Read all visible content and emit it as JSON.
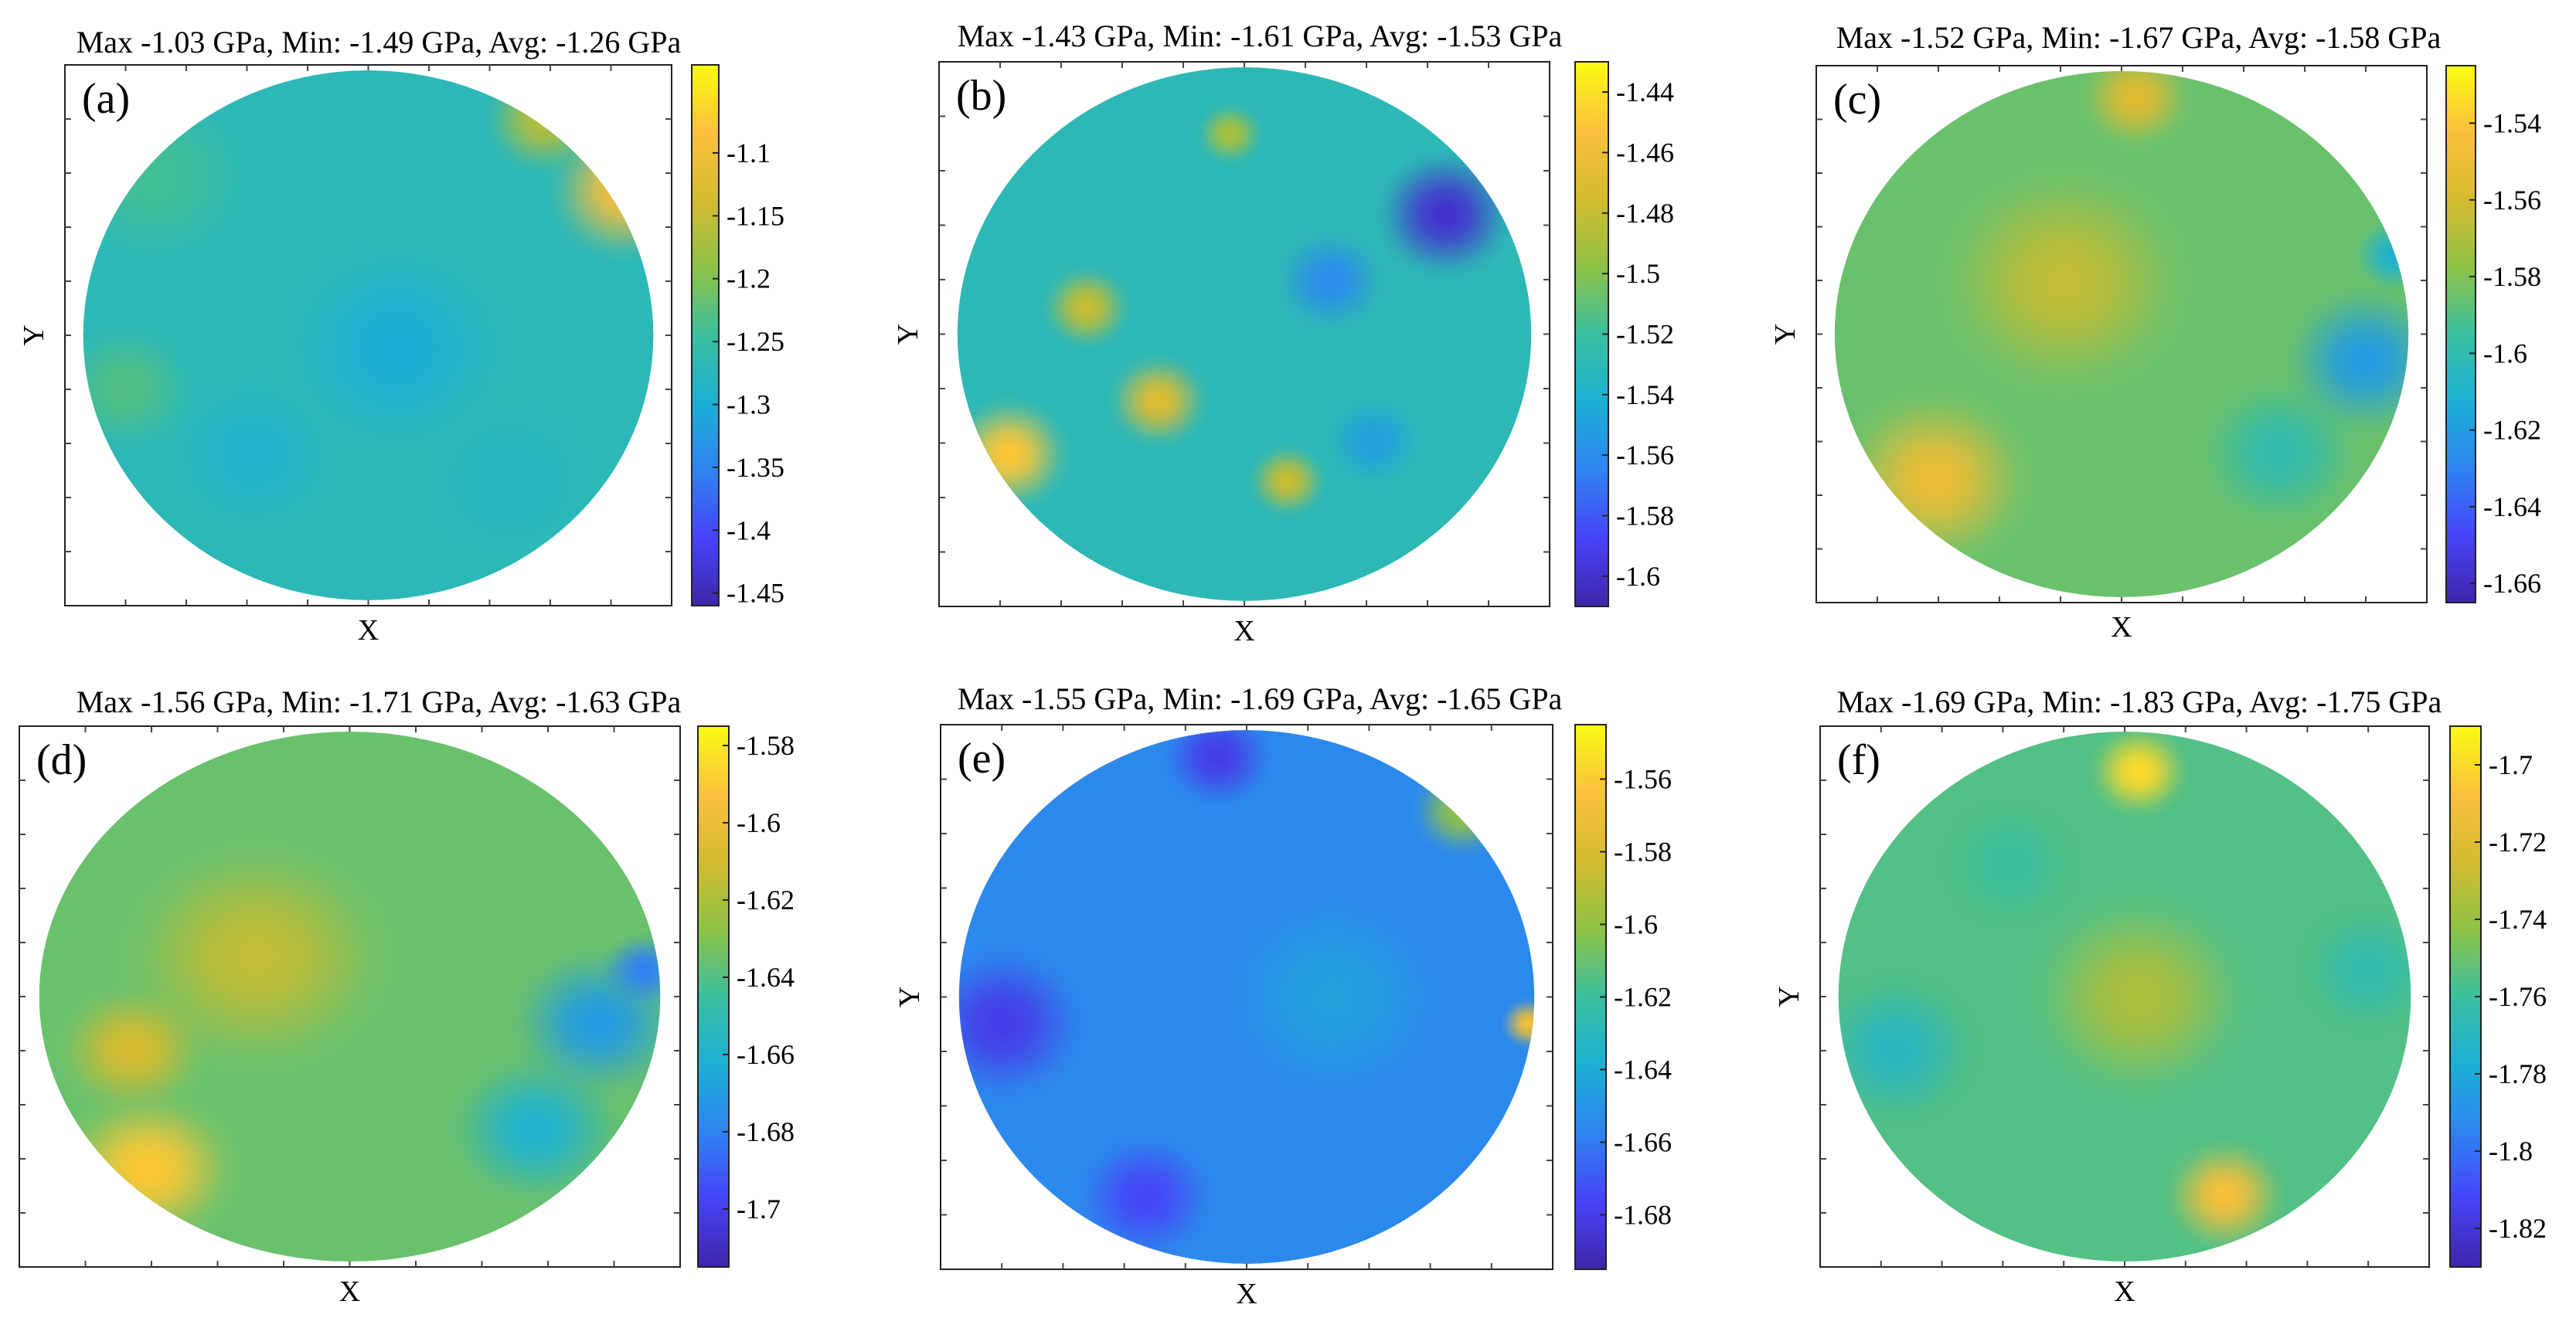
{
  "figure": {
    "colormap": [
      "#3e26a8",
      "#4743f8",
      "#2f83f0",
      "#1bb0d4",
      "#3bbf9e",
      "#8ec246",
      "#d4bb30",
      "#fbc03c",
      "#f9fb15"
    ]
  },
  "chart_data": [
    {
      "type": "heatmap",
      "panel_label": "(a)",
      "title": "Max -1.03 GPa, Min: -1.49 GPa, Avg: -1.26 GPa",
      "xlabel": "X",
      "ylabel": "Y",
      "stats": {
        "max": -1.03,
        "min": -1.49,
        "avg": -1.26,
        "unit": "GPa"
      },
      "colorbar": {
        "range": [
          -1.46,
          -1.03
        ],
        "ticks": [
          -1.1,
          -1.15,
          -1.2,
          -1.25,
          -1.3,
          -1.35,
          -1.4,
          -1.45
        ],
        "tick_labels": [
          "-1.1",
          "-1.15",
          "-1.2",
          "-1.25",
          "-1.3",
          "-1.35",
          "-1.4",
          "-1.45"
        ]
      },
      "features": [
        {
          "cx": 0.0,
          "cy": 0.0,
          "r": 1.0,
          "v": -1.27
        },
        {
          "cx": 0.9,
          "cy": -0.55,
          "r": 0.28,
          "v": -1.09
        },
        {
          "cx": 0.62,
          "cy": -0.82,
          "r": 0.22,
          "v": -1.16
        },
        {
          "cx": -0.75,
          "cy": -0.6,
          "r": 0.35,
          "v": -1.24
        },
        {
          "cx": 0.1,
          "cy": 0.05,
          "r": 0.4,
          "v": -1.3
        },
        {
          "cx": -0.4,
          "cy": 0.45,
          "r": 0.3,
          "v": -1.29
        },
        {
          "cx": 0.5,
          "cy": 0.55,
          "r": 0.3,
          "v": -1.28
        },
        {
          "cx": -0.85,
          "cy": 0.2,
          "r": 0.25,
          "v": -1.23
        }
      ]
    },
    {
      "type": "heatmap",
      "panel_label": "(b)",
      "title": "Max -1.43 GPa, Min: -1.61 GPa, Avg: -1.53 GPa",
      "xlabel": "X",
      "ylabel": "Y",
      "stats": {
        "max": -1.43,
        "min": -1.61,
        "avg": -1.53,
        "unit": "GPa"
      },
      "colorbar": {
        "range": [
          -1.61,
          -1.43
        ],
        "ticks": [
          -1.44,
          -1.46,
          -1.48,
          -1.5,
          -1.52,
          -1.54,
          -1.56,
          -1.58,
          -1.6
        ],
        "tick_labels": [
          "-1.44",
          "-1.46",
          "-1.48",
          "-1.5",
          "-1.52",
          "-1.54",
          "-1.56",
          "-1.58",
          "-1.6"
        ]
      },
      "features": [
        {
          "cx": 0.0,
          "cy": 0.0,
          "r": 1.0,
          "v": -1.53
        },
        {
          "cx": -0.82,
          "cy": 0.45,
          "r": 0.22,
          "v": -1.45
        },
        {
          "cx": -0.3,
          "cy": 0.25,
          "r": 0.18,
          "v": -1.47
        },
        {
          "cx": -0.55,
          "cy": -0.1,
          "r": 0.16,
          "v": -1.48
        },
        {
          "cx": 0.15,
          "cy": 0.55,
          "r": 0.14,
          "v": -1.48
        },
        {
          "cx": 0.7,
          "cy": -0.45,
          "r": 0.25,
          "v": -1.6
        },
        {
          "cx": 0.9,
          "cy": -0.7,
          "r": 0.15,
          "v": -1.59
        },
        {
          "cx": 0.3,
          "cy": -0.2,
          "r": 0.2,
          "v": -1.56
        },
        {
          "cx": -0.05,
          "cy": -0.75,
          "r": 0.12,
          "v": -1.49
        },
        {
          "cx": 0.45,
          "cy": 0.4,
          "r": 0.18,
          "v": -1.55
        }
      ]
    },
    {
      "type": "heatmap",
      "panel_label": "(c)",
      "title": "Max -1.52 GPa, Min: -1.67 GPa, Avg: -1.58 GPa",
      "xlabel": "X",
      "ylabel": "Y",
      "stats": {
        "max": -1.52,
        "min": -1.67,
        "avg": -1.58,
        "unit": "GPa"
      },
      "colorbar": {
        "range": [
          -1.665,
          -1.525
        ],
        "ticks": [
          -1.54,
          -1.56,
          -1.58,
          -1.6,
          -1.62,
          -1.64,
          -1.66
        ],
        "tick_labels": [
          "-1.54",
          "-1.56",
          "-1.58",
          "-1.6",
          "-1.62",
          "-1.64",
          "-1.66"
        ]
      },
      "features": [
        {
          "cx": 0.0,
          "cy": 0.0,
          "r": 1.0,
          "v": -1.585
        },
        {
          "cx": -0.65,
          "cy": 0.55,
          "r": 0.35,
          "v": -1.55
        },
        {
          "cx": -0.2,
          "cy": -0.2,
          "r": 0.45,
          "v": -1.565
        },
        {
          "cx": 0.05,
          "cy": -0.9,
          "r": 0.2,
          "v": -1.555
        },
        {
          "cx": 0.85,
          "cy": 0.1,
          "r": 0.3,
          "v": -1.62
        },
        {
          "cx": 0.55,
          "cy": 0.45,
          "r": 0.3,
          "v": -1.6
        },
        {
          "cx": 0.95,
          "cy": -0.3,
          "r": 0.15,
          "v": -1.61
        }
      ]
    },
    {
      "type": "heatmap",
      "panel_label": "(d)",
      "title": "Max -1.56 GPa, Min: -1.71 GPa, Avg: -1.63 GPa",
      "xlabel": "X",
      "ylabel": "Y",
      "stats": {
        "max": -1.56,
        "min": -1.71,
        "avg": -1.63,
        "unit": "GPa"
      },
      "colorbar": {
        "range": [
          -1.715,
          -1.575
        ],
        "ticks": [
          -1.58,
          -1.6,
          -1.62,
          -1.64,
          -1.66,
          -1.68,
          -1.7
        ],
        "tick_labels": [
          "-1.58",
          "-1.6",
          "-1.62",
          "-1.64",
          "-1.66",
          "-1.68",
          "-1.7"
        ]
      },
      "features": [
        {
          "cx": 0.0,
          "cy": 0.0,
          "r": 1.0,
          "v": -1.635
        },
        {
          "cx": -0.65,
          "cy": 0.65,
          "r": 0.3,
          "v": -1.59
        },
        {
          "cx": -0.3,
          "cy": -0.15,
          "r": 0.45,
          "v": -1.615
        },
        {
          "cx": -0.7,
          "cy": 0.2,
          "r": 0.25,
          "v": -1.61
        },
        {
          "cx": 0.8,
          "cy": 0.1,
          "r": 0.3,
          "v": -1.67
        },
        {
          "cx": 0.6,
          "cy": 0.5,
          "r": 0.3,
          "v": -1.66
        },
        {
          "cx": 0.95,
          "cy": -0.1,
          "r": 0.15,
          "v": -1.68
        }
      ]
    },
    {
      "type": "heatmap",
      "panel_label": "(e)",
      "title": "Max -1.55 GPa, Min: -1.69 GPa, Avg: -1.65 GPa",
      "xlabel": "X",
      "ylabel": "Y",
      "stats": {
        "max": -1.55,
        "min": -1.69,
        "avg": -1.65,
        "unit": "GPa"
      },
      "colorbar": {
        "range": [
          -1.695,
          -1.545
        ],
        "ticks": [
          -1.56,
          -1.58,
          -1.6,
          -1.62,
          -1.64,
          -1.66,
          -1.68
        ],
        "tick_labels": [
          "-1.56",
          "-1.58",
          "-1.6",
          "-1.62",
          "-1.64",
          "-1.66",
          "-1.68"
        ]
      },
      "features": [
        {
          "cx": 0.0,
          "cy": 0.0,
          "r": 1.0,
          "v": -1.655
        },
        {
          "cx": 0.75,
          "cy": -0.7,
          "r": 0.18,
          "v": -1.6
        },
        {
          "cx": 0.98,
          "cy": 0.1,
          "r": 0.1,
          "v": -1.57
        },
        {
          "cx": -0.85,
          "cy": 0.1,
          "r": 0.3,
          "v": -1.68
        },
        {
          "cx": -0.1,
          "cy": -0.9,
          "r": 0.2,
          "v": -1.68
        },
        {
          "cx": -0.35,
          "cy": 0.75,
          "r": 0.25,
          "v": -1.675
        },
        {
          "cx": 0.3,
          "cy": 0.0,
          "r": 0.4,
          "v": -1.645
        }
      ]
    },
    {
      "type": "heatmap",
      "panel_label": "(f)",
      "title": "Max -1.69 GPa, Min: -1.83 GPa, Avg: -1.75 GPa",
      "xlabel": "X",
      "ylabel": "Y",
      "stats": {
        "max": -1.69,
        "min": -1.83,
        "avg": -1.75,
        "unit": "GPa"
      },
      "colorbar": {
        "range": [
          -1.83,
          -1.69
        ],
        "ticks": [
          -1.7,
          -1.72,
          -1.74,
          -1.76,
          -1.78,
          -1.8,
          -1.82
        ],
        "tick_labels": [
          "-1.7",
          "-1.72",
          "-1.74",
          "-1.76",
          "-1.78",
          "-1.8",
          "-1.82"
        ]
      },
      "features": [
        {
          "cx": 0.0,
          "cy": 0.0,
          "r": 1.0,
          "v": -1.755
        },
        {
          "cx": 0.05,
          "cy": -0.85,
          "r": 0.18,
          "v": -1.7
        },
        {
          "cx": 0.35,
          "cy": 0.75,
          "r": 0.22,
          "v": -1.71
        },
        {
          "cx": 0.05,
          "cy": 0.0,
          "r": 0.4,
          "v": -1.735
        },
        {
          "cx": -0.8,
          "cy": 0.2,
          "r": 0.3,
          "v": -1.77
        },
        {
          "cx": 0.85,
          "cy": -0.1,
          "r": 0.25,
          "v": -1.765
        },
        {
          "cx": -0.4,
          "cy": -0.5,
          "r": 0.25,
          "v": -1.76
        }
      ]
    }
  ]
}
